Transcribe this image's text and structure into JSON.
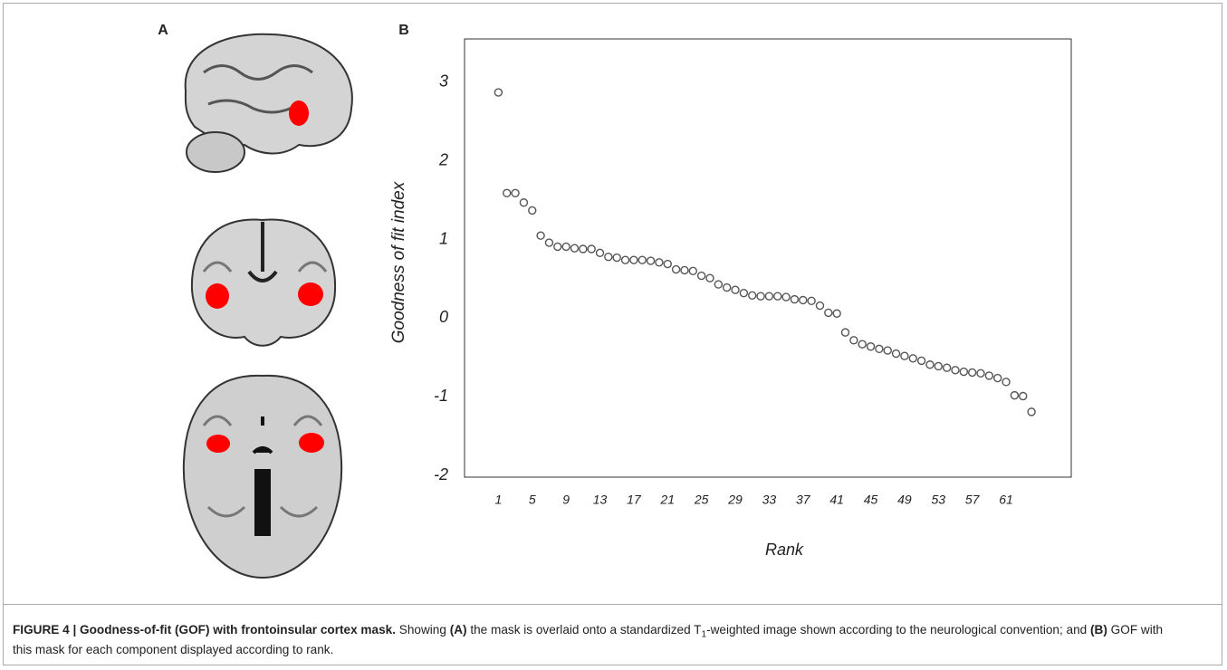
{
  "panel_labels": [
    "A",
    "B"
  ],
  "caption": {
    "segments": [
      {
        "text": "FIGURE 4 | Goodness-of-fit (GOF) with frontoinsular cortex mask.",
        "bold": true
      },
      {
        "text": " Showing "
      },
      {
        "text": "(A)",
        "bold": true
      },
      {
        "text": " the mask is overlaid onto a standardized T"
      },
      {
        "text": "1",
        "sub": true
      },
      {
        "text": "-weighted image shown according to the neurological convention; and "
      },
      {
        "text": "(B)",
        "bold": true
      },
      {
        "text": " GOF with this mask for each component displayed according to rank."
      }
    ]
  },
  "chart_data": {
    "type": "scatter",
    "xlabel": "Rank",
    "ylabel": "Goodness of fit index",
    "x": [
      1,
      2,
      3,
      4,
      5,
      6,
      7,
      8,
      9,
      10,
      11,
      12,
      13,
      14,
      15,
      16,
      17,
      18,
      19,
      20,
      21,
      22,
      23,
      24,
      25,
      26,
      27,
      28,
      29,
      30,
      31,
      32,
      33,
      34,
      35,
      36,
      37,
      38,
      39,
      40,
      41,
      42,
      43,
      44,
      45,
      46,
      47,
      48,
      49,
      50,
      51,
      52,
      53,
      54,
      55,
      56,
      57,
      58,
      59,
      60,
      61,
      62,
      63,
      64
    ],
    "series": [
      {
        "color": "#555555",
        "values": [
          2.87,
          1.59,
          1.59,
          1.47,
          1.37,
          1.05,
          0.96,
          0.91,
          0.91,
          0.89,
          0.88,
          0.88,
          0.83,
          0.78,
          0.77,
          0.74,
          0.74,
          0.74,
          0.73,
          0.71,
          0.69,
          0.62,
          0.61,
          0.6,
          0.54,
          0.51,
          0.43,
          0.39,
          0.36,
          0.32,
          0.29,
          0.28,
          0.28,
          0.28,
          0.27,
          0.24,
          0.23,
          0.22,
          0.16,
          0.07,
          0.06,
          -0.18,
          -0.28,
          -0.33,
          -0.36,
          -0.39,
          -0.41,
          -0.45,
          -0.48,
          -0.51,
          -0.54,
          -0.59,
          -0.61,
          -0.63,
          -0.66,
          -0.68,
          -0.69,
          -0.7,
          -0.73,
          -0.76,
          -0.81,
          -0.98,
          -0.99,
          -1.19
        ]
      }
    ],
    "xlim": [
      -3,
      68.7
    ],
    "ylim": [
      -2.02,
      3.55
    ],
    "xticks": [
      1,
      5,
      9,
      13,
      17,
      21,
      25,
      29,
      33,
      37,
      41,
      45,
      49,
      53,
      57,
      61
    ],
    "yticks": [
      3,
      2,
      1,
      0,
      -1,
      -2
    ]
  }
}
